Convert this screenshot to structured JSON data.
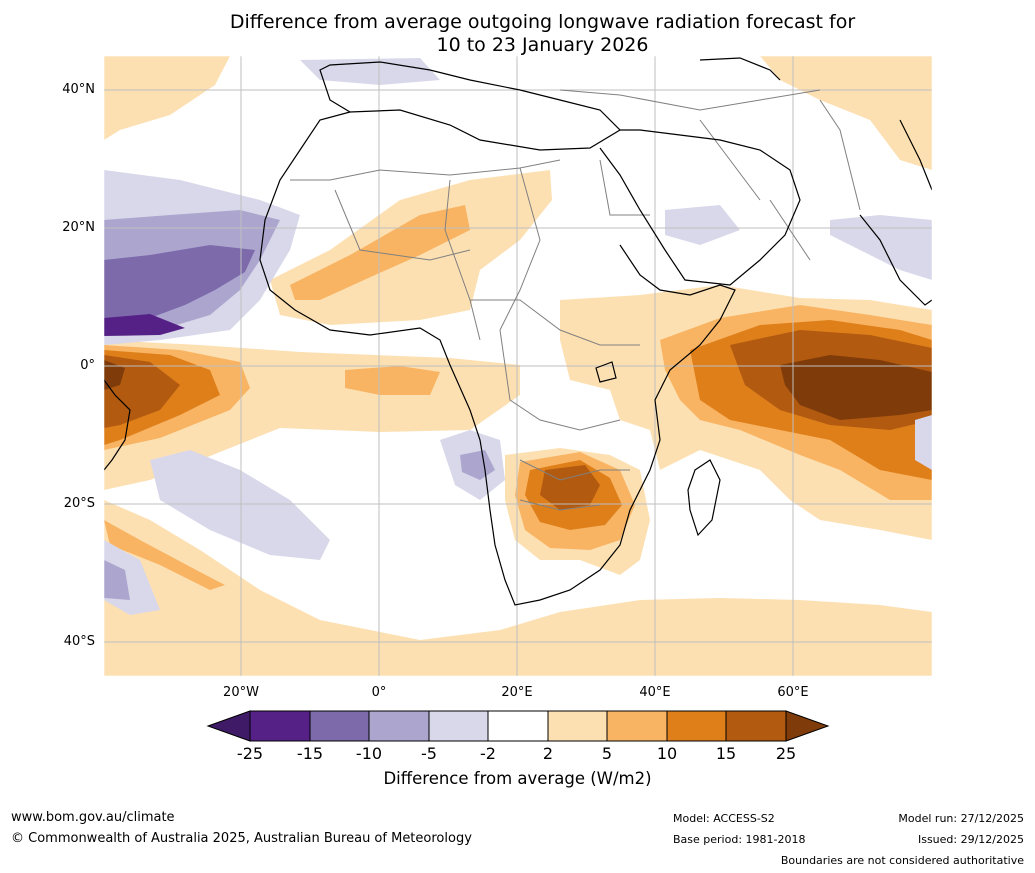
{
  "title": {
    "line1": "Difference from average outgoing longwave radiation forecast for",
    "line2": "10 to 23 January 2026"
  },
  "axes": {
    "lat_labels": [
      "40°N",
      "20°N",
      "0°",
      "20°S",
      "40°S"
    ],
    "lon_labels": [
      "20°W",
      "0°",
      "20°E",
      "40°E",
      "60°E"
    ]
  },
  "legend": {
    "ticks": [
      "-25",
      "-15",
      "-10",
      "-5",
      "-2",
      "2",
      "5",
      "10",
      "15",
      "25"
    ],
    "colors": [
      "#3f1a66",
      "#562186",
      "#7c6aab",
      "#aca6cf",
      "#d8d8ea",
      "#ffffff",
      "#fde0b2",
      "#f8b463",
      "#de7f1a",
      "#b15a10",
      "#7f3c0a"
    ],
    "title": "Difference from average (W/m2)"
  },
  "footer": {
    "website": "www.bom.gov.au/climate",
    "copyright": "© Commonwealth of Australia 2025, Australian Bureau of Meteorology",
    "model": "Model: ACCESS-S2",
    "base_period": "Base period: 1981-2018",
    "model_run": "Model run: 27/12/2025",
    "issued": "Issued: 29/12/2025",
    "disclaimer": "Boundaries are not considered authoritative"
  }
}
